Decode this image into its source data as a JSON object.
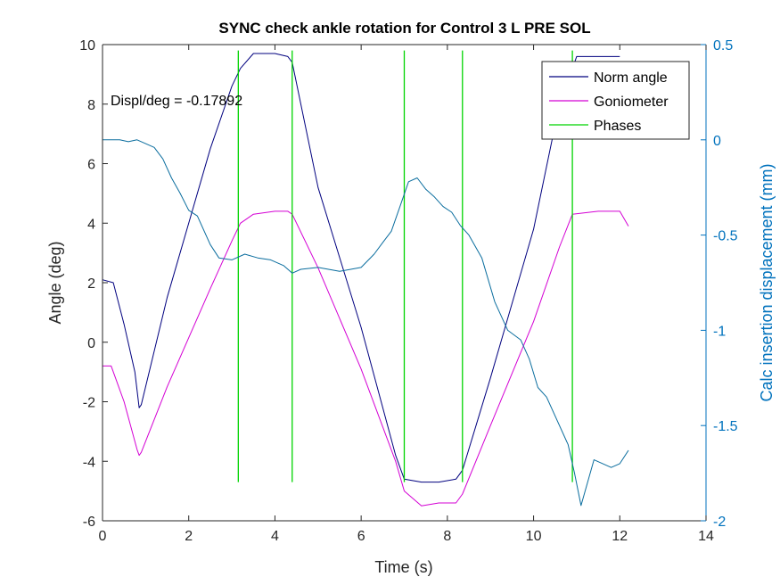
{
  "chart_data": {
    "type": "line",
    "title": "SYNC check ankle rotation for Control 3 L PRE SOL",
    "xlabel": "Time (s)",
    "ylabel_left": "Angle (deg)",
    "ylabel_right": "Calc insertion displacement (mm)",
    "xlim": [
      0,
      14
    ],
    "ylim_left": [
      -6,
      10
    ],
    "ylim_right": [
      -2,
      0.5
    ],
    "xticks": [
      "0",
      "2",
      "4",
      "6",
      "8",
      "10",
      "12",
      "14"
    ],
    "yticks_left": [
      "-6",
      "-4",
      "-2",
      "0",
      "2",
      "4",
      "6",
      "8",
      "10"
    ],
    "yticks_right": [
      "-2",
      "-1.5",
      "-1",
      "-0.5",
      "0",
      "0.5"
    ],
    "grid": false,
    "legend_position": "top-right",
    "annotation": "Displ/deg = -0.17892",
    "colors": {
      "norm_angle": "#00007f",
      "goniometer": "#d400d4",
      "phases": "#00d400",
      "displacement": "#0a6d9e",
      "right_axis": "#0072bd"
    },
    "series": [
      {
        "name": "Norm angle",
        "axis": "left",
        "x": [
          0.0,
          0.25,
          0.5,
          0.75,
          0.85,
          0.9,
          1.5,
          2.5,
          3.0,
          3.2,
          3.5,
          4.0,
          4.3,
          4.4,
          5.0,
          6.0,
          6.8,
          7.0,
          7.4,
          7.8,
          8.2,
          8.35,
          9.0,
          10.0,
          10.6,
          11.0,
          11.5,
          11.9,
          12.0
        ],
        "y": [
          2.1,
          2.0,
          0.6,
          -1.0,
          -2.2,
          -2.1,
          1.5,
          6.5,
          8.6,
          9.2,
          9.7,
          9.7,
          9.6,
          9.4,
          5.2,
          0.5,
          -3.8,
          -4.6,
          -4.7,
          -4.7,
          -4.6,
          -4.3,
          -1.2,
          3.8,
          8.0,
          9.6,
          9.6,
          9.6,
          9.6
        ]
      },
      {
        "name": "Goniometer",
        "axis": "left",
        "x": [
          0.0,
          0.2,
          0.5,
          0.8,
          0.85,
          0.9,
          1.5,
          2.5,
          3.0,
          3.2,
          3.5,
          4.0,
          4.3,
          4.4,
          5.0,
          6.0,
          6.8,
          7.0,
          7.4,
          7.8,
          8.2,
          8.35,
          9.0,
          10.0,
          10.6,
          10.9,
          11.5,
          12.0,
          12.2
        ],
        "y": [
          -0.8,
          -0.8,
          -2.0,
          -3.6,
          -3.8,
          -3.7,
          -1.5,
          1.8,
          3.4,
          4.0,
          4.3,
          4.4,
          4.4,
          4.3,
          2.5,
          -0.9,
          -4.0,
          -5.0,
          -5.5,
          -5.4,
          -5.4,
          -5.1,
          -2.8,
          0.7,
          3.2,
          4.3,
          4.4,
          4.4,
          3.9
        ]
      },
      {
        "name": "Phases",
        "axis": "left",
        "x_positions": [
          3.15,
          4.4,
          7.0,
          8.35,
          10.9
        ],
        "y_range": [
          -4.7,
          9.8
        ]
      },
      {
        "name": "Calc insertion displacement",
        "axis": "right",
        "x": [
          0.0,
          0.4,
          0.6,
          0.8,
          1.0,
          1.2,
          1.4,
          1.6,
          1.8,
          2.0,
          2.2,
          2.5,
          2.7,
          3.0,
          3.3,
          3.6,
          3.9,
          4.2,
          4.4,
          4.6,
          5.0,
          5.5,
          6.0,
          6.3,
          6.5,
          6.7,
          6.9,
          7.1,
          7.3,
          7.5,
          7.7,
          7.9,
          8.1,
          8.3,
          8.5,
          8.8,
          9.1,
          9.4,
          9.7,
          9.9,
          10.1,
          10.3,
          10.6,
          10.8,
          10.95,
          11.1,
          11.4,
          11.8,
          12.0,
          12.2
        ],
        "y": [
          0.0,
          0.0,
          -0.01,
          0.0,
          -0.02,
          -0.04,
          -0.1,
          -0.2,
          -0.28,
          -0.37,
          -0.4,
          -0.55,
          -0.62,
          -0.63,
          -0.6,
          -0.62,
          -0.63,
          -0.66,
          -0.7,
          -0.68,
          -0.67,
          -0.69,
          -0.67,
          -0.6,
          -0.54,
          -0.48,
          -0.35,
          -0.22,
          -0.2,
          -0.26,
          -0.3,
          -0.35,
          -0.38,
          -0.45,
          -0.5,
          -0.62,
          -0.85,
          -1.0,
          -1.05,
          -1.15,
          -1.3,
          -1.35,
          -1.5,
          -1.6,
          -1.75,
          -1.92,
          -1.68,
          -1.72,
          -1.7,
          -1.63
        ]
      }
    ]
  }
}
